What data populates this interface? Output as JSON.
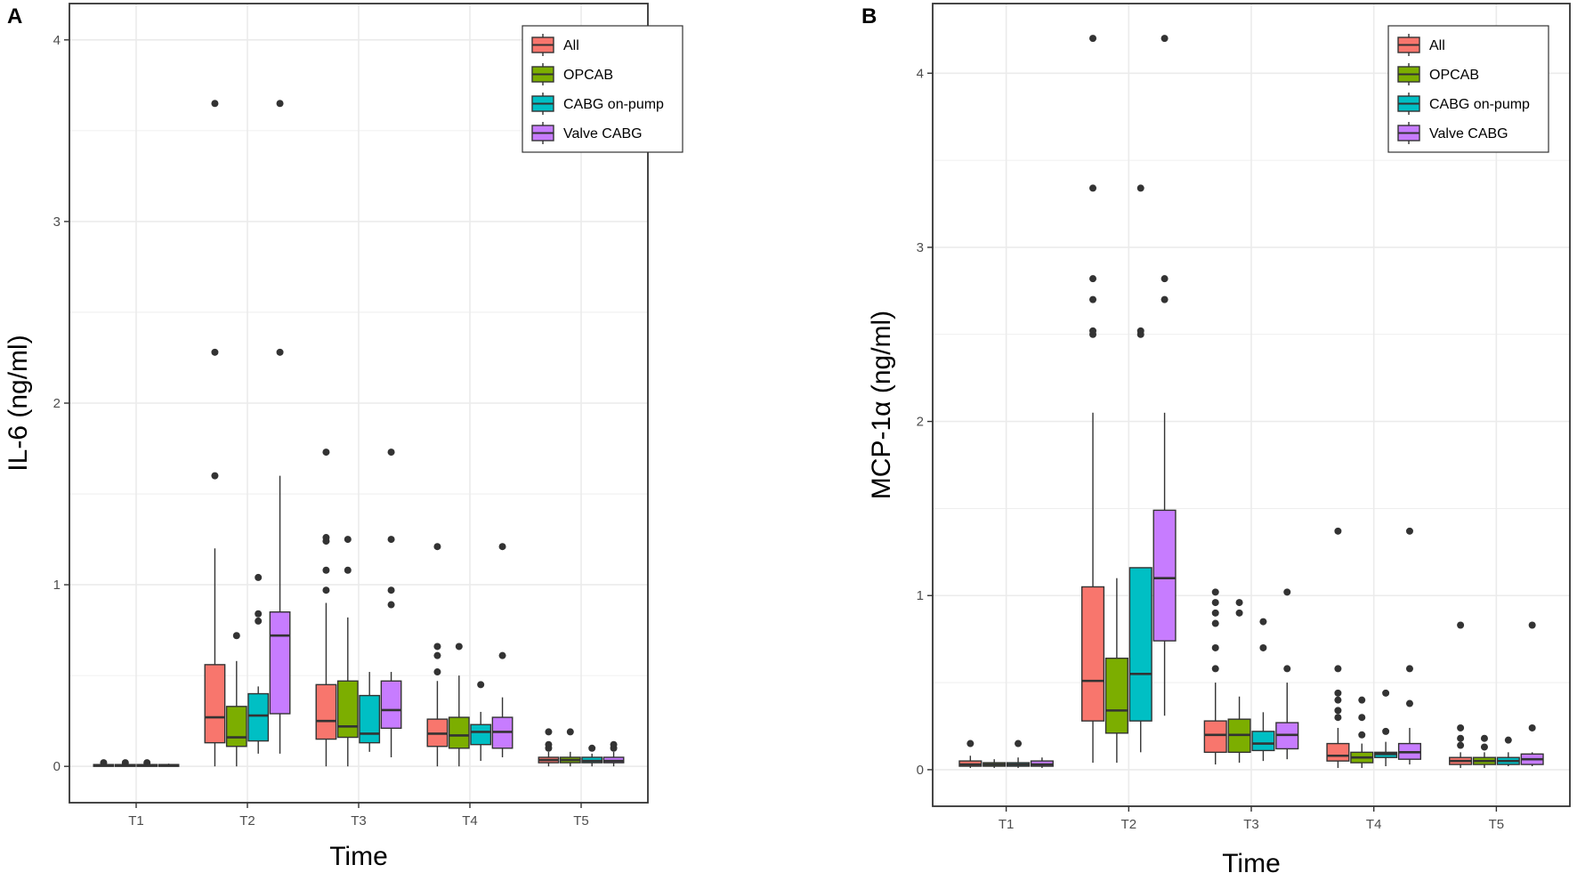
{
  "figure": {
    "colors": {
      "All": "#F8766D",
      "OPCAB": "#7CAE00",
      "CABG on-pump": "#00BFC4",
      "Valve CABG": "#C77CFF",
      "grid": "#ebebeb",
      "frame": "#333333"
    }
  },
  "chart_data": [
    {
      "type": "box",
      "panel_label": "A",
      "title": "",
      "xlabel": "Time",
      "ylabel": "IL-6 (ng/ml)",
      "categories": [
        "T1",
        "T2",
        "T3",
        "T4",
        "T5"
      ],
      "ylim": [
        -0.2,
        4.2
      ],
      "yticks": [
        0,
        1,
        2,
        3,
        4
      ],
      "ytick_labels": [
        "0",
        "1",
        "2",
        "3",
        "4"
      ],
      "grid": true,
      "legend": {
        "position": "top-right",
        "entries": [
          "All",
          "OPCAB",
          "CABG on-pump",
          "Valve CABG"
        ]
      },
      "series": [
        {
          "name": "All",
          "boxes": [
            {
              "category": "T1",
              "min": 0.0,
              "q1": 0.0,
              "median": 0.005,
              "q3": 0.01,
              "max": 0.02,
              "outliers": [
                0.02
              ]
            },
            {
              "category": "T2",
              "min": 0.0,
              "q1": 0.13,
              "median": 0.27,
              "q3": 0.56,
              "max": 1.2,
              "outliers": [
                1.6,
                2.28,
                3.65
              ]
            },
            {
              "category": "T3",
              "min": 0.0,
              "q1": 0.15,
              "median": 0.25,
              "q3": 0.45,
              "max": 0.9,
              "outliers": [
                0.97,
                1.08,
                1.24,
                1.26,
                1.73
              ]
            },
            {
              "category": "T4",
              "min": 0.0,
              "q1": 0.11,
              "median": 0.18,
              "q3": 0.26,
              "max": 0.47,
              "outliers": [
                0.52,
                0.61,
                0.66,
                1.21
              ]
            },
            {
              "category": "T5",
              "min": 0.0,
              "q1": 0.02,
              "median": 0.035,
              "q3": 0.05,
              "max": 0.08,
              "outliers": [
                0.1,
                0.12,
                0.19
              ]
            }
          ]
        },
        {
          "name": "OPCAB",
          "boxes": [
            {
              "category": "T1",
              "min": 0.0,
              "q1": 0.0,
              "median": 0.005,
              "q3": 0.01,
              "max": 0.015,
              "outliers": [
                0.02
              ]
            },
            {
              "category": "T2",
              "min": 0.0,
              "q1": 0.11,
              "median": 0.16,
              "q3": 0.33,
              "max": 0.58,
              "outliers": [
                0.72
              ]
            },
            {
              "category": "T3",
              "min": 0.0,
              "q1": 0.16,
              "median": 0.22,
              "q3": 0.47,
              "max": 0.82,
              "outliers": [
                1.08,
                1.25
              ]
            },
            {
              "category": "T4",
              "min": 0.0,
              "q1": 0.1,
              "median": 0.17,
              "q3": 0.27,
              "max": 0.5,
              "outliers": [
                0.66
              ]
            },
            {
              "category": "T5",
              "min": 0.0,
              "q1": 0.02,
              "median": 0.035,
              "q3": 0.05,
              "max": 0.08,
              "outliers": [
                0.19
              ]
            }
          ]
        },
        {
          "name": "CABG on-pump",
          "boxes": [
            {
              "category": "T1",
              "min": 0.0,
              "q1": 0.0,
              "median": 0.005,
              "q3": 0.01,
              "max": 0.015,
              "outliers": [
                0.02
              ]
            },
            {
              "category": "T2",
              "min": 0.07,
              "q1": 0.14,
              "median": 0.28,
              "q3": 0.4,
              "max": 0.44,
              "outliers": [
                0.8,
                0.84,
                1.04
              ]
            },
            {
              "category": "T3",
              "min": 0.08,
              "q1": 0.13,
              "median": 0.18,
              "q3": 0.39,
              "max": 0.52,
              "outliers": []
            },
            {
              "category": "T4",
              "min": 0.03,
              "q1": 0.12,
              "median": 0.19,
              "q3": 0.23,
              "max": 0.3,
              "outliers": [
                0.45
              ]
            },
            {
              "category": "T5",
              "min": 0.0,
              "q1": 0.02,
              "median": 0.03,
              "q3": 0.05,
              "max": 0.07,
              "outliers": [
                0.1
              ]
            }
          ]
        },
        {
          "name": "Valve CABG",
          "boxes": [
            {
              "category": "T1",
              "min": 0.0,
              "q1": 0.0,
              "median": 0.005,
              "q3": 0.01,
              "max": 0.015,
              "outliers": []
            },
            {
              "category": "T2",
              "min": 0.07,
              "q1": 0.29,
              "median": 0.72,
              "q3": 0.85,
              "max": 1.6,
              "outliers": [
                2.28,
                3.65
              ]
            },
            {
              "category": "T3",
              "min": 0.05,
              "q1": 0.21,
              "median": 0.31,
              "q3": 0.47,
              "max": 0.52,
              "outliers": [
                0.89,
                0.97,
                1.25,
                1.73
              ]
            },
            {
              "category": "T4",
              "min": 0.05,
              "q1": 0.1,
              "median": 0.19,
              "q3": 0.27,
              "max": 0.38,
              "outliers": [
                0.61,
                1.21
              ]
            },
            {
              "category": "T5",
              "min": 0.0,
              "q1": 0.02,
              "median": 0.03,
              "q3": 0.05,
              "max": 0.08,
              "outliers": [
                0.1,
                0.12
              ]
            }
          ]
        }
      ]
    },
    {
      "type": "box",
      "panel_label": "B",
      "title": "",
      "xlabel": "Time",
      "ylabel": "MCP-1α (ng/ml)",
      "categories": [
        "T1",
        "T2",
        "T3",
        "T4",
        "T5"
      ],
      "ylim": [
        -0.21,
        4.4
      ],
      "yticks": [
        0,
        1,
        2,
        3,
        4
      ],
      "ytick_labels": [
        "0",
        "1",
        "2",
        "3",
        "4"
      ],
      "grid": true,
      "legend": {
        "position": "top-right",
        "entries": [
          "All",
          "OPCAB",
          "CABG on-pump",
          "Valve CABG"
        ]
      },
      "series": [
        {
          "name": "All",
          "boxes": [
            {
              "category": "T1",
              "min": 0.01,
              "q1": 0.02,
              "median": 0.03,
              "q3": 0.05,
              "max": 0.08,
              "outliers": [
                0.15
              ]
            },
            {
              "category": "T2",
              "min": 0.04,
              "q1": 0.28,
              "median": 0.51,
              "q3": 1.05,
              "max": 2.05,
              "outliers": [
                2.5,
                2.52,
                2.7,
                2.82,
                3.34,
                4.2
              ]
            },
            {
              "category": "T3",
              "min": 0.03,
              "q1": 0.1,
              "median": 0.2,
              "q3": 0.28,
              "max": 0.5,
              "outliers": [
                0.58,
                0.7,
                0.84,
                0.9,
                0.96,
                1.02
              ]
            },
            {
              "category": "T4",
              "min": 0.01,
              "q1": 0.05,
              "median": 0.08,
              "q3": 0.15,
              "max": 0.24,
              "outliers": [
                0.3,
                0.34,
                0.4,
                0.44,
                0.58,
                1.37
              ]
            },
            {
              "category": "T5",
              "min": 0.01,
              "q1": 0.03,
              "median": 0.05,
              "q3": 0.07,
              "max": 0.1,
              "outliers": [
                0.14,
                0.18,
                0.24,
                0.83
              ]
            }
          ]
        },
        {
          "name": "OPCAB",
          "boxes": [
            {
              "category": "T1",
              "min": 0.01,
              "q1": 0.02,
              "median": 0.03,
              "q3": 0.04,
              "max": 0.06,
              "outliers": []
            },
            {
              "category": "T2",
              "min": 0.04,
              "q1": 0.21,
              "median": 0.34,
              "q3": 0.64,
              "max": 1.1,
              "outliers": []
            },
            {
              "category": "T3",
              "min": 0.04,
              "q1": 0.1,
              "median": 0.2,
              "q3": 0.29,
              "max": 0.42,
              "outliers": [
                0.9,
                0.96
              ]
            },
            {
              "category": "T4",
              "min": 0.01,
              "q1": 0.04,
              "median": 0.07,
              "q3": 0.1,
              "max": 0.15,
              "outliers": [
                0.2,
                0.3,
                0.4
              ]
            },
            {
              "category": "T5",
              "min": 0.01,
              "q1": 0.03,
              "median": 0.05,
              "q3": 0.07,
              "max": 0.1,
              "outliers": [
                0.13,
                0.18
              ]
            }
          ]
        },
        {
          "name": "CABG on-pump",
          "boxes": [
            {
              "category": "T1",
              "min": 0.01,
              "q1": 0.02,
              "median": 0.03,
              "q3": 0.04,
              "max": 0.07,
              "outliers": [
                0.15
              ]
            },
            {
              "category": "T2",
              "min": 0.1,
              "q1": 0.28,
              "median": 0.55,
              "q3": 1.16,
              "max": 1.16,
              "outliers": [
                2.5,
                2.52,
                3.34
              ]
            },
            {
              "category": "T3",
              "min": 0.05,
              "q1": 0.11,
              "median": 0.15,
              "q3": 0.22,
              "max": 0.33,
              "outliers": [
                0.7,
                0.85
              ]
            },
            {
              "category": "T4",
              "min": 0.02,
              "q1": 0.07,
              "median": 0.09,
              "q3": 0.1,
              "max": 0.16,
              "outliers": [
                0.22,
                0.44
              ]
            },
            {
              "category": "T5",
              "min": 0.02,
              "q1": 0.03,
              "median": 0.05,
              "q3": 0.07,
              "max": 0.1,
              "outliers": [
                0.17
              ]
            }
          ]
        },
        {
          "name": "Valve CABG",
          "boxes": [
            {
              "category": "T1",
              "min": 0.01,
              "q1": 0.02,
              "median": 0.03,
              "q3": 0.05,
              "max": 0.07,
              "outliers": []
            },
            {
              "category": "T2",
              "min": 0.31,
              "q1": 0.74,
              "median": 1.1,
              "q3": 1.49,
              "max": 2.05,
              "outliers": [
                2.7,
                2.82,
                4.2
              ]
            },
            {
              "category": "T3",
              "min": 0.06,
              "q1": 0.12,
              "median": 0.2,
              "q3": 0.27,
              "max": 0.5,
              "outliers": [
                0.58,
                1.02
              ]
            },
            {
              "category": "T4",
              "min": 0.03,
              "q1": 0.06,
              "median": 0.1,
              "q3": 0.15,
              "max": 0.24,
              "outliers": [
                0.38,
                0.58,
                1.37
              ]
            },
            {
              "category": "T5",
              "min": 0.02,
              "q1": 0.03,
              "median": 0.06,
              "q3": 0.09,
              "max": 0.1,
              "outliers": [
                0.24,
                0.83
              ]
            }
          ]
        }
      ]
    }
  ]
}
